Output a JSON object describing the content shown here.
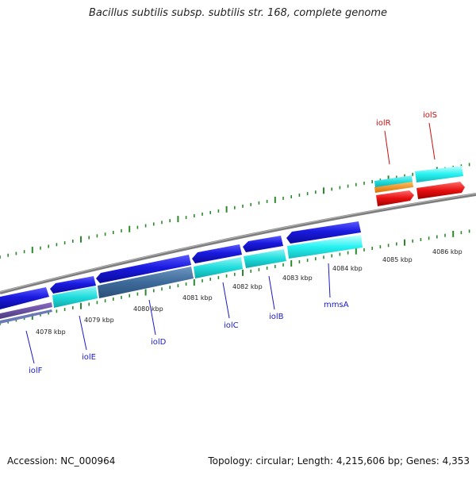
{
  "title": "Bacillus subtilis subsp. subtilis str. 168, complete genome",
  "footer": {
    "accession": "Accession: NC_000964",
    "summary": "Topology: circular; Length: 4,215,606 bp; Genes: 4,353"
  },
  "scale_labels": [
    "4078 kbp",
    "4079 kbp",
    "4080 kbp",
    "4081 kbp",
    "4082 kbp",
    "4083 kbp",
    "4084 kbp",
    "4085 kbp",
    "4086 kbp"
  ],
  "genes": [
    {
      "name": "iolF",
      "color": "#1a1acc"
    },
    {
      "name": "iolE",
      "color": "#1a1acc"
    },
    {
      "name": "iolD",
      "color": "#1a1acc"
    },
    {
      "name": "iolC",
      "color": "#1a1acc"
    },
    {
      "name": "iolB",
      "color": "#1a1acc"
    },
    {
      "name": "mmsA",
      "color": "#1a1acc"
    },
    {
      "name": "iolR",
      "color": "#cc1111"
    },
    {
      "name": "iolS",
      "color": "#cc1111"
    }
  ],
  "colors": {
    "forward_cds": "#e21010",
    "reverse_cds": "#1d1ddd",
    "cyan": "#19dede",
    "orange": "#f08a10",
    "backbone": "#808080",
    "tick": "#2a8a2a"
  }
}
